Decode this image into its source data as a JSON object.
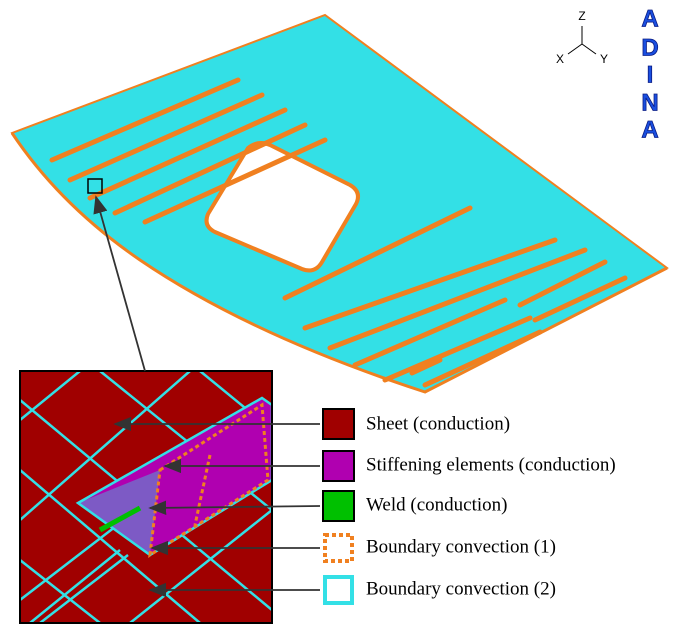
{
  "triad": {
    "z": "Z",
    "x": "X",
    "y": "Y"
  },
  "logo": [
    "A",
    "D",
    "I",
    "N",
    "A"
  ],
  "legend": [
    {
      "label": "Sheet (conduction)"
    },
    {
      "label": "Stiffening elements (conduction)"
    },
    {
      "label": "Weld  (conduction)"
    },
    {
      "label": "Boundary convection (1)"
    },
    {
      "label": "Boundary convection (2)"
    }
  ]
}
